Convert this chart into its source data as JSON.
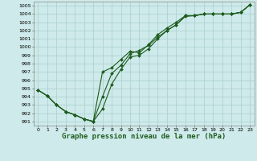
{
  "title": "Graphe pression niveau de la mer (hPa)",
  "background_color": "#ceeaea",
  "grid_color": "#aacece",
  "line_color": "#1e5c1e",
  "xlim": [
    -0.5,
    23.5
  ],
  "ylim": [
    990.5,
    1005.5
  ],
  "xticks": [
    0,
    1,
    2,
    3,
    4,
    5,
    6,
    7,
    8,
    9,
    10,
    11,
    12,
    13,
    14,
    15,
    16,
    17,
    18,
    19,
    20,
    21,
    22,
    23
  ],
  "yticks": [
    991,
    992,
    993,
    994,
    995,
    996,
    997,
    998,
    999,
    1000,
    1001,
    1002,
    1003,
    1004,
    1005
  ],
  "series": [
    {
      "x": [
        0,
        1,
        2,
        3,
        4,
        5,
        6,
        7,
        8,
        9,
        10,
        11,
        12,
        13,
        14,
        15,
        16,
        17,
        18,
        19,
        20,
        21,
        22,
        23
      ],
      "y": [
        994.8,
        994.1,
        993.0,
        992.2,
        991.8,
        991.3,
        991.0,
        994.0,
        996.8,
        997.8,
        999.2,
        999.6,
        1000.2,
        1001.2,
        1002.0,
        1002.7,
        1003.8,
        1003.8,
        1004.0,
        1004.0,
        1004.0,
        1004.0,
        1004.2,
        1005.1
      ]
    },
    {
      "x": [
        0,
        1,
        2,
        3,
        4,
        5,
        6,
        7,
        8,
        9,
        10,
        11,
        12,
        13,
        14,
        15,
        16,
        17,
        18,
        19,
        20,
        21,
        22,
        23
      ],
      "y": [
        994.8,
        994.1,
        993.0,
        992.2,
        991.8,
        991.3,
        991.0,
        997.0,
        997.5,
        998.5,
        999.5,
        999.3,
        1000.3,
        1001.5,
        1002.3,
        1003.0,
        1003.8,
        1003.8,
        1004.0,
        1004.0,
        1004.0,
        1004.0,
        1004.2,
        1005.1
      ]
    },
    {
      "x": [
        0,
        1,
        2,
        3,
        4,
        5,
        6,
        7,
        8,
        9,
        10,
        11,
        12,
        13,
        14,
        15,
        16,
        17,
        18,
        19,
        20,
        21,
        22,
        23
      ],
      "y": [
        994.8,
        994.1,
        993.0,
        992.2,
        991.8,
        991.3,
        991.0,
        992.5,
        995.5,
        997.3,
        998.8,
        999.0,
        999.8,
        1001.0,
        1002.0,
        1002.7,
        1003.7,
        1003.8,
        1004.0,
        1004.0,
        1004.0,
        1004.0,
        1004.2,
        1005.1
      ]
    }
  ],
  "marker": "D",
  "markersize": 2.0,
  "linewidth": 0.8,
  "title_fontsize": 6.5,
  "tick_fontsize": 4.5
}
